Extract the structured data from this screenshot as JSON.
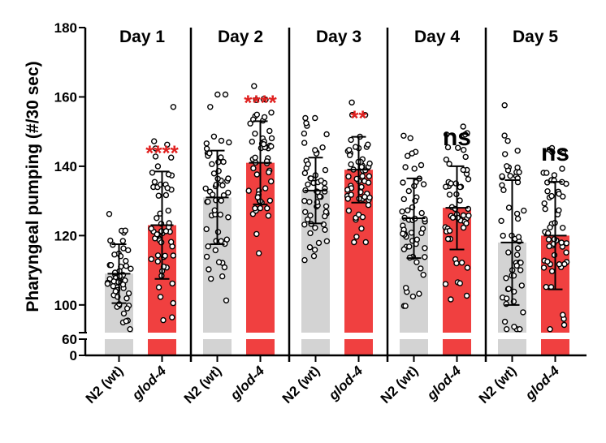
{
  "chart_data": {
    "type": "bar",
    "ylabel": "Pharyngeal pumping (#/30 sec)",
    "yticks_upper": [
      100,
      120,
      140,
      160,
      180
    ],
    "yticks_lower": [
      60,
      0
    ],
    "ylim_upper": [
      92,
      180
    ],
    "ylim_lower": [
      0,
      60
    ],
    "axis_break": true,
    "groups": [
      {
        "label": "Day 1",
        "significance": "****",
        "significance_color": "#e0201f",
        "bars": [
          {
            "category": "N2 (wt)",
            "mean": 109,
            "sd": 8.5,
            "color": "#d3d3d3"
          },
          {
            "category": "glod-4",
            "mean": 123,
            "sd": 15.5,
            "color": "#f04040"
          }
        ]
      },
      {
        "label": "Day 2",
        "significance": "****",
        "significance_color": "#e0201f",
        "bars": [
          {
            "category": "N2 (wt)",
            "mean": 131,
            "sd": 13.5,
            "color": "#d3d3d3"
          },
          {
            "category": "glod-4",
            "mean": 141,
            "sd": 12,
            "color": "#f04040"
          }
        ]
      },
      {
        "label": "Day 3",
        "significance": "**",
        "significance_color": "#e0201f",
        "bars": [
          {
            "category": "N2 (wt)",
            "mean": 133,
            "sd": 9.5,
            "color": "#d3d3d3"
          },
          {
            "category": "glod-4",
            "mean": 139,
            "sd": 9.5,
            "color": "#f04040"
          }
        ]
      },
      {
        "label": "Day 4",
        "significance": "ns",
        "significance_color": "#000000",
        "bars": [
          {
            "category": "N2 (wt)",
            "mean": 125,
            "sd": 11.5,
            "color": "#d3d3d3"
          },
          {
            "category": "glod-4",
            "mean": 128,
            "sd": 12,
            "color": "#f04040"
          }
        ]
      },
      {
        "label": "Day 5",
        "significance": "ns",
        "significance_color": "#000000",
        "bars": [
          {
            "category": "N2 (wt)",
            "mean": 118,
            "sd": 18,
            "color": "#d3d3d3"
          },
          {
            "category": "glod-4",
            "mean": 120,
            "sd": 15.5,
            "color": "#f04040"
          }
        ]
      }
    ],
    "x_tick_labels": [
      "N2 (wt)",
      "glod-4",
      "N2 (wt)",
      "glod-4",
      "N2 (wt)",
      "glod-4",
      "N2 (wt)",
      "glod-4",
      "N2 (wt)",
      "glod-4"
    ],
    "individual_points_shown": true
  }
}
